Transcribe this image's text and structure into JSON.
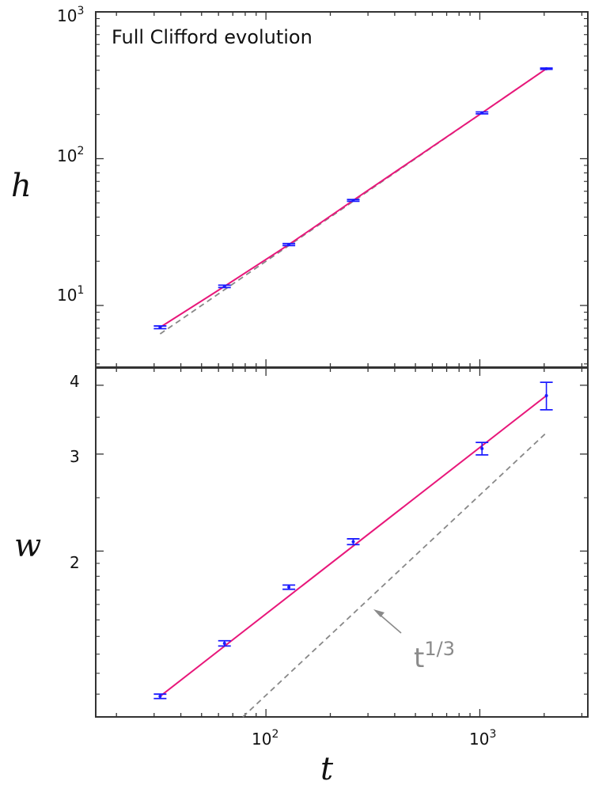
{
  "chart_data": [
    {
      "type": "scatter",
      "panel": "top",
      "title": "Full Clifford evolution",
      "ylabel": "h",
      "xscale": "log",
      "yscale": "log",
      "xlim": [
        16,
        3200
      ],
      "ylim": [
        3.8,
        1000
      ],
      "x_ticks": [
        {
          "base": "10",
          "exp": "2"
        },
        {
          "base": "10",
          "exp": "3"
        }
      ],
      "y_ticks": [
        {
          "base": "10",
          "exp": "1"
        },
        {
          "base": "10",
          "exp": "2"
        },
        {
          "base": "10",
          "exp": "3"
        }
      ],
      "series": [
        {
          "kind": "data-with-errorbars",
          "color": "#1a1aff",
          "x": [
            32,
            64,
            128,
            256,
            1024,
            2048
          ],
          "y": [
            7.1,
            13.5,
            26.0,
            52.0,
            205,
            410
          ],
          "yerr": [
            0.15,
            0.25,
            0.4,
            0.7,
            3,
            4
          ]
        },
        {
          "kind": "fit-line",
          "color": "#e8177a",
          "x": [
            32,
            64,
            128,
            256,
            1024,
            2048
          ],
          "y": [
            7.1,
            13.5,
            26.0,
            52.0,
            205,
            410
          ]
        },
        {
          "kind": "reference-dashed",
          "color": "#888888",
          "x": [
            32,
            2048
          ],
          "y": [
            6.4,
            410
          ]
        }
      ]
    },
    {
      "type": "scatter",
      "panel": "bottom",
      "xlabel": "t",
      "ylabel": "w",
      "xscale": "log",
      "yscale": "log",
      "xlim": [
        16,
        3200
      ],
      "ylim": [
        1.0,
        4.3
      ],
      "y_ticks": [
        "2",
        "3",
        "4"
      ],
      "series": [
        {
          "kind": "data-with-errorbars",
          "color": "#1a1aff",
          "x": [
            32,
            64,
            128,
            256,
            1024,
            2048
          ],
          "y": [
            1.09,
            1.36,
            1.72,
            2.08,
            3.07,
            3.83
          ],
          "yerr": [
            0.01,
            0.015,
            0.015,
            0.025,
            0.08,
            0.22
          ]
        },
        {
          "kind": "fit-line",
          "color": "#e8177a",
          "x": [
            32,
            2048
          ],
          "y": [
            1.09,
            3.83
          ]
        },
        {
          "kind": "reference-dashed",
          "color": "#888888",
          "x": [
            78,
            2048
          ],
          "y": [
            1.0,
            3.28
          ]
        }
      ],
      "annotation": {
        "base": "t",
        "exp": "1/3"
      }
    }
  ]
}
